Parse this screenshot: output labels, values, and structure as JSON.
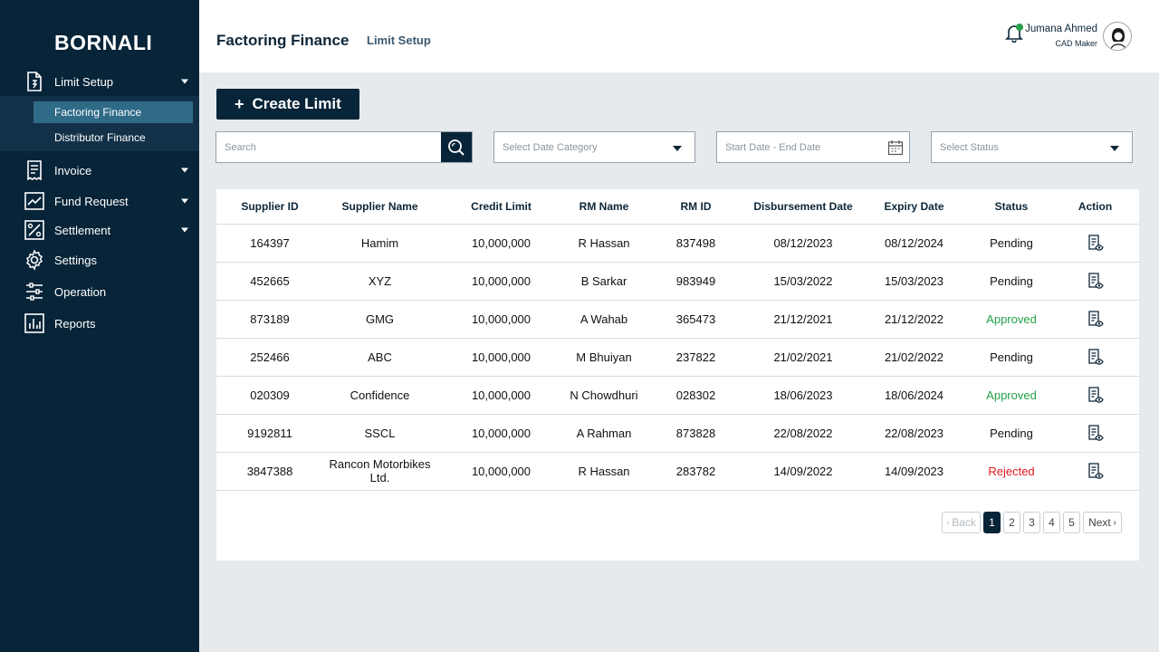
{
  "brand": "BORNALI",
  "sidebar": {
    "items": [
      {
        "label": "Limit Setup",
        "icon": "document-icon"
      },
      {
        "label": "Invoice",
        "icon": "receipt-icon"
      },
      {
        "label": "Fund Request",
        "icon": "chart-line-icon"
      },
      {
        "label": "Settlement",
        "icon": "percent-icon"
      },
      {
        "label": "Settings",
        "icon": "gear-icon"
      },
      {
        "label": "Operation",
        "icon": "sliders-icon"
      },
      {
        "label": "Reports",
        "icon": "bar-chart-icon"
      }
    ],
    "submenu": [
      {
        "label": "Factoring Finance",
        "active": true
      },
      {
        "label": "Distributor Finance",
        "active": false
      }
    ]
  },
  "header": {
    "title": "Factoring Finance",
    "breadcrumb": "Limit Setup",
    "user_name": "Jumana Ahmed",
    "user_role": "CAD Maker",
    "notification_dot_color": "#24a148"
  },
  "toolbar": {
    "create_label": "Create Limit",
    "search_placeholder": "Search",
    "date_category_placeholder": "Select Date Category",
    "date_range_placeholder": "Start Date - End Date",
    "status_placeholder": "Select Status"
  },
  "table": {
    "columns": [
      "Supplier ID",
      "Supplier Name",
      "Credit Limit",
      "RM Name",
      "RM ID",
      "Disbursement Date",
      "Expiry Date",
      "Status",
      "Action"
    ],
    "rows": [
      {
        "supplier_id": "164397",
        "supplier_name": "Hamim",
        "credit_limit": "10,000,000",
        "rm_name": "R Hassan",
        "rm_id": "837498",
        "disbursement_date": "08/12/2023",
        "expiry_date": "08/12/2024",
        "status": "Pending"
      },
      {
        "supplier_id": "452665",
        "supplier_name": "XYZ",
        "credit_limit": "10,000,000",
        "rm_name": "B Sarkar",
        "rm_id": "983949",
        "disbursement_date": "15/03/2022",
        "expiry_date": "15/03/2023",
        "status": "Pending"
      },
      {
        "supplier_id": "873189",
        "supplier_name": "GMG",
        "credit_limit": "10,000,000",
        "rm_name": "A Wahab",
        "rm_id": "365473",
        "disbursement_date": "21/12/2021",
        "expiry_date": "21/12/2022",
        "status": "Approved"
      },
      {
        "supplier_id": "252466",
        "supplier_name": "ABC",
        "credit_limit": "10,000,000",
        "rm_name": "M Bhuiyan",
        "rm_id": "237822",
        "disbursement_date": "21/02/2021",
        "expiry_date": "21/02/2022",
        "status": "Pending"
      },
      {
        "supplier_id": "020309",
        "supplier_name": "Confidence",
        "credit_limit": "10,000,000",
        "rm_name": "N Chowdhuri",
        "rm_id": "028302",
        "disbursement_date": "18/06/2023",
        "expiry_date": "18/06/2024",
        "status": "Approved"
      },
      {
        "supplier_id": "9192811",
        "supplier_name": "SSCL",
        "credit_limit": "10,000,000",
        "rm_name": "A Rahman",
        "rm_id": "873828",
        "disbursement_date": "22/08/2022",
        "expiry_date": "22/08/2023",
        "status": "Pending"
      },
      {
        "supplier_id": "3847388",
        "supplier_name": "Rancon Motorbikes Ltd.",
        "credit_limit": "10,000,000",
        "rm_name": "R Hassan",
        "rm_id": "283782",
        "disbursement_date": "14/09/2022",
        "expiry_date": "14/09/2023",
        "status": "Rejected"
      }
    ],
    "status_colors": {
      "Pending": "#111111",
      "Approved": "#24a148",
      "Rejected": "#e3191c"
    }
  },
  "pagination": {
    "back_label": "Back",
    "next_label": "Next",
    "pages": [
      "1",
      "2",
      "3",
      "4",
      "5"
    ],
    "current_page": "1"
  },
  "colors": {
    "sidebar_bg": "#072438",
    "active_sub_bg": "#2f6b87",
    "primary": "#072438"
  }
}
